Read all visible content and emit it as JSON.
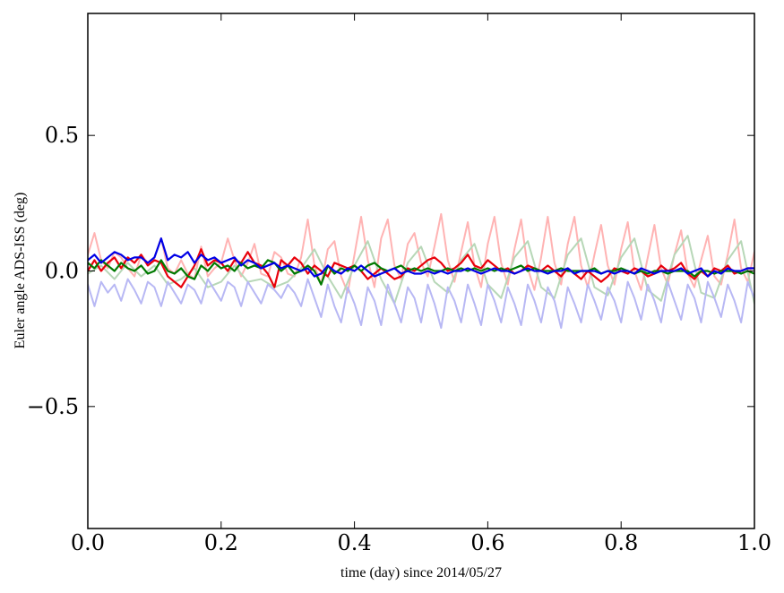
{
  "chart_data": {
    "type": "line",
    "title": "",
    "xlabel": "time (day) since 2014/05/27",
    "ylabel": "Euler angle ADS-ISS (deg)",
    "xlim": [
      0.0,
      1.0
    ],
    "ylim": [
      -0.95,
      0.95
    ],
    "xticks": [
      0.0,
      0.2,
      0.4,
      0.6,
      0.8,
      1.0
    ],
    "xtick_labels": [
      "0.0",
      "0.2",
      "0.4",
      "0.6",
      "0.8",
      "1.0"
    ],
    "yticks": [
      -0.5,
      0.0,
      0.5
    ],
    "ytick_labels": [
      "−0.5",
      "0.0",
      "0.5"
    ],
    "grid": false,
    "legend": "none",
    "series": [
      {
        "color": "#ffb3b3",
        "style": "faded",
        "x": [
          0.0,
          0.01,
          0.02,
          0.03,
          0.04,
          0.05,
          0.06,
          0.07,
          0.08,
          0.09,
          0.1,
          0.11,
          0.12,
          0.13,
          0.14,
          0.15,
          0.16,
          0.17,
          0.18,
          0.19,
          0.2,
          0.21,
          0.22,
          0.23,
          0.24,
          0.25,
          0.26,
          0.27,
          0.28,
          0.29,
          0.3,
          0.31,
          0.32,
          0.33,
          0.34,
          0.35,
          0.36,
          0.37,
          0.38,
          0.39,
          0.4,
          0.41,
          0.42,
          0.43,
          0.44,
          0.45,
          0.46,
          0.47,
          0.48,
          0.49,
          0.5,
          0.51,
          0.52,
          0.53,
          0.54,
          0.55,
          0.56,
          0.57,
          0.58,
          0.59,
          0.6,
          0.61,
          0.62,
          0.63,
          0.64,
          0.65,
          0.66,
          0.67,
          0.68,
          0.69,
          0.7,
          0.71,
          0.72,
          0.73,
          0.74,
          0.75,
          0.76,
          0.77,
          0.78,
          0.79,
          0.8,
          0.81,
          0.82,
          0.83,
          0.84,
          0.85,
          0.86,
          0.87,
          0.88,
          0.89,
          0.9,
          0.91,
          0.92,
          0.93,
          0.94,
          0.95,
          0.96,
          0.97,
          0.98,
          0.99,
          1.0
        ],
        "y": [
          0.06,
          0.14,
          0.04,
          0.01,
          0.07,
          0.05,
          0.01,
          -0.02,
          0.06,
          0.03,
          0.05,
          0.12,
          0.01,
          -0.01,
          0.04,
          -0.01,
          -0.03,
          0.09,
          -0.02,
          0.01,
          0.03,
          0.12,
          0.04,
          -0.02,
          0.03,
          0.1,
          -0.01,
          -0.02,
          0.07,
          0.05,
          -0.01,
          -0.02,
          0.05,
          0.19,
          0.02,
          -0.05,
          0.08,
          0.11,
          -0.02,
          -0.08,
          0.06,
          0.2,
          0.04,
          -0.06,
          0.12,
          0.19,
          0.02,
          -0.03,
          0.1,
          0.14,
          0.03,
          -0.02,
          0.09,
          0.21,
          0.04,
          -0.04,
          0.07,
          0.18,
          0.02,
          -0.06,
          0.1,
          0.2,
          0.03,
          -0.05,
          0.08,
          0.19,
          0.01,
          -0.07,
          0.05,
          0.2,
          0.03,
          -0.05,
          0.1,
          0.2,
          0.02,
          -0.06,
          0.06,
          0.17,
          0.02,
          -0.05,
          0.08,
          0.18,
          0.0,
          -0.07,
          0.05,
          0.17,
          0.01,
          -0.05,
          0.06,
          0.15,
          -0.01,
          -0.06,
          0.04,
          0.13,
          -0.02,
          -0.05,
          0.06,
          0.19,
          0.01,
          -0.04,
          0.07
        ]
      },
      {
        "color": "#b7d7b7",
        "style": "faded",
        "x": [
          0.0,
          0.02,
          0.04,
          0.06,
          0.08,
          0.1,
          0.12,
          0.14,
          0.16,
          0.18,
          0.2,
          0.22,
          0.24,
          0.26,
          0.28,
          0.3,
          0.32,
          0.34,
          0.36,
          0.38,
          0.4,
          0.42,
          0.44,
          0.46,
          0.48,
          0.5,
          0.52,
          0.54,
          0.56,
          0.58,
          0.6,
          0.62,
          0.64,
          0.66,
          0.68,
          0.7,
          0.72,
          0.74,
          0.76,
          0.78,
          0.8,
          0.82,
          0.84,
          0.86,
          0.88,
          0.9,
          0.92,
          0.94,
          0.96,
          0.98,
          1.0
        ],
        "y": [
          -0.01,
          0.02,
          -0.03,
          0.03,
          -0.02,
          0.02,
          -0.05,
          -0.03,
          0.01,
          -0.06,
          -0.04,
          0.02,
          -0.04,
          -0.03,
          -0.06,
          -0.04,
          0.01,
          0.08,
          -0.02,
          -0.1,
          0.02,
          0.11,
          -0.03,
          -0.12,
          0.03,
          0.09,
          -0.04,
          -0.08,
          0.04,
          0.1,
          -0.05,
          -0.1,
          0.05,
          0.11,
          -0.06,
          -0.1,
          0.06,
          0.12,
          -0.06,
          -0.09,
          0.05,
          0.12,
          -0.07,
          -0.11,
          0.06,
          0.13,
          -0.08,
          -0.1,
          0.04,
          0.11,
          -0.12
        ]
      },
      {
        "color": "#b8b8f4",
        "style": "faded",
        "x": [
          0.0,
          0.01,
          0.02,
          0.03,
          0.04,
          0.05,
          0.06,
          0.07,
          0.08,
          0.09,
          0.1,
          0.11,
          0.12,
          0.13,
          0.14,
          0.15,
          0.16,
          0.17,
          0.18,
          0.19,
          0.2,
          0.21,
          0.22,
          0.23,
          0.24,
          0.25,
          0.26,
          0.27,
          0.28,
          0.29,
          0.3,
          0.31,
          0.32,
          0.33,
          0.34,
          0.35,
          0.36,
          0.37,
          0.38,
          0.39,
          0.4,
          0.41,
          0.42,
          0.43,
          0.44,
          0.45,
          0.46,
          0.47,
          0.48,
          0.49,
          0.5,
          0.51,
          0.52,
          0.53,
          0.54,
          0.55,
          0.56,
          0.57,
          0.58,
          0.59,
          0.6,
          0.61,
          0.62,
          0.63,
          0.64,
          0.65,
          0.66,
          0.67,
          0.68,
          0.69,
          0.7,
          0.71,
          0.72,
          0.73,
          0.74,
          0.75,
          0.76,
          0.77,
          0.78,
          0.79,
          0.8,
          0.81,
          0.82,
          0.83,
          0.84,
          0.85,
          0.86,
          0.87,
          0.88,
          0.89,
          0.9,
          0.91,
          0.92,
          0.93,
          0.94,
          0.95,
          0.96,
          0.97,
          0.98,
          0.99,
          1.0
        ],
        "y": [
          -0.05,
          -0.13,
          -0.04,
          -0.08,
          -0.05,
          -0.11,
          -0.03,
          -0.07,
          -0.12,
          -0.04,
          -0.06,
          -0.13,
          -0.04,
          -0.08,
          -0.12,
          -0.05,
          -0.07,
          -0.12,
          -0.03,
          -0.07,
          -0.11,
          -0.04,
          -0.06,
          -0.13,
          -0.04,
          -0.08,
          -0.12,
          -0.05,
          -0.07,
          -0.1,
          -0.05,
          -0.08,
          -0.13,
          -0.03,
          -0.1,
          -0.17,
          -0.05,
          -0.13,
          -0.19,
          -0.06,
          -0.12,
          -0.2,
          -0.06,
          -0.11,
          -0.2,
          -0.05,
          -0.12,
          -0.19,
          -0.06,
          -0.1,
          -0.19,
          -0.05,
          -0.12,
          -0.21,
          -0.06,
          -0.11,
          -0.19,
          -0.05,
          -0.12,
          -0.2,
          -0.05,
          -0.11,
          -0.19,
          -0.06,
          -0.12,
          -0.2,
          -0.05,
          -0.11,
          -0.19,
          -0.06,
          -0.11,
          -0.21,
          -0.06,
          -0.12,
          -0.19,
          -0.05,
          -0.11,
          -0.18,
          -0.06,
          -0.11,
          -0.19,
          -0.04,
          -0.1,
          -0.18,
          -0.05,
          -0.11,
          -0.19,
          -0.04,
          -0.11,
          -0.18,
          -0.05,
          -0.1,
          -0.19,
          -0.04,
          -0.1,
          -0.17,
          -0.05,
          -0.11,
          -0.19,
          -0.04,
          -0.1
        ]
      },
      {
        "color": "#e8000b",
        "style": "solid",
        "x": [
          0.0,
          0.01,
          0.02,
          0.03,
          0.04,
          0.05,
          0.06,
          0.07,
          0.08,
          0.09,
          0.1,
          0.11,
          0.12,
          0.13,
          0.14,
          0.15,
          0.16,
          0.17,
          0.18,
          0.19,
          0.2,
          0.21,
          0.22,
          0.23,
          0.24,
          0.25,
          0.26,
          0.27,
          0.28,
          0.29,
          0.3,
          0.31,
          0.32,
          0.33,
          0.34,
          0.35,
          0.36,
          0.37,
          0.38,
          0.39,
          0.4,
          0.41,
          0.42,
          0.43,
          0.44,
          0.45,
          0.46,
          0.47,
          0.48,
          0.49,
          0.5,
          0.51,
          0.52,
          0.53,
          0.54,
          0.55,
          0.56,
          0.57,
          0.58,
          0.59,
          0.6,
          0.61,
          0.62,
          0.63,
          0.64,
          0.65,
          0.66,
          0.67,
          0.68,
          0.69,
          0.7,
          0.71,
          0.72,
          0.73,
          0.74,
          0.75,
          0.76,
          0.77,
          0.78,
          0.79,
          0.8,
          0.81,
          0.82,
          0.83,
          0.84,
          0.85,
          0.86,
          0.87,
          0.88,
          0.89,
          0.9,
          0.91,
          0.92,
          0.93,
          0.94,
          0.95,
          0.96,
          0.97,
          0.98,
          0.99,
          1.0
        ],
        "y": [
          0.0,
          0.04,
          0.0,
          0.03,
          0.05,
          0.01,
          0.05,
          0.03,
          0.06,
          0.02,
          0.04,
          0.03,
          -0.02,
          -0.04,
          -0.06,
          -0.02,
          0.02,
          0.08,
          0.02,
          0.04,
          0.03,
          0.0,
          0.04,
          0.03,
          0.07,
          0.03,
          0.02,
          -0.01,
          -0.06,
          0.04,
          0.02,
          0.05,
          0.03,
          -0.01,
          0.02,
          0.0,
          -0.02,
          0.03,
          0.02,
          0.01,
          0.02,
          0.0,
          -0.03,
          -0.01,
          0.01,
          -0.01,
          -0.03,
          -0.02,
          0.01,
          0.0,
          0.02,
          0.04,
          0.05,
          0.03,
          0.0,
          0.01,
          0.03,
          0.06,
          0.02,
          0.01,
          0.04,
          0.02,
          0.0,
          0.01,
          -0.01,
          0.0,
          0.02,
          0.01,
          0.0,
          0.02,
          0.0,
          -0.02,
          0.01,
          -0.01,
          -0.03,
          0.0,
          -0.02,
          -0.04,
          -0.02,
          0.01,
          0.0,
          -0.01,
          0.01,
          0.0,
          -0.02,
          -0.01,
          0.02,
          0.0,
          0.01,
          0.03,
          -0.01,
          -0.03,
          0.0,
          -0.02,
          0.01,
          0.0,
          0.02,
          -0.01,
          0.0,
          0.01,
          0.01
        ]
      },
      {
        "color": "#007a00",
        "style": "solid",
        "x": [
          0.0,
          0.01,
          0.02,
          0.03,
          0.04,
          0.05,
          0.06,
          0.07,
          0.08,
          0.09,
          0.1,
          0.11,
          0.12,
          0.13,
          0.14,
          0.15,
          0.16,
          0.17,
          0.18,
          0.19,
          0.2,
          0.21,
          0.22,
          0.23,
          0.24,
          0.25,
          0.26,
          0.27,
          0.28,
          0.29,
          0.3,
          0.31,
          0.32,
          0.33,
          0.34,
          0.35,
          0.36,
          0.37,
          0.38,
          0.39,
          0.4,
          0.41,
          0.42,
          0.43,
          0.44,
          0.45,
          0.46,
          0.47,
          0.48,
          0.49,
          0.5,
          0.51,
          0.52,
          0.53,
          0.54,
          0.55,
          0.56,
          0.57,
          0.58,
          0.59,
          0.6,
          0.61,
          0.62,
          0.63,
          0.64,
          0.65,
          0.66,
          0.67,
          0.68,
          0.69,
          0.7,
          0.71,
          0.72,
          0.73,
          0.74,
          0.75,
          0.76,
          0.77,
          0.78,
          0.79,
          0.8,
          0.81,
          0.82,
          0.83,
          0.84,
          0.85,
          0.86,
          0.87,
          0.88,
          0.89,
          0.9,
          0.91,
          0.92,
          0.93,
          0.94,
          0.95,
          0.96,
          0.97,
          0.98,
          0.99,
          1.0
        ],
        "y": [
          0.03,
          0.01,
          0.04,
          0.02,
          0.0,
          0.03,
          0.01,
          0.0,
          0.02,
          -0.01,
          0.0,
          0.04,
          0.0,
          -0.01,
          0.01,
          -0.02,
          -0.03,
          0.02,
          0.0,
          0.03,
          0.01,
          0.02,
          0.0,
          0.03,
          0.01,
          0.02,
          0.01,
          0.04,
          0.03,
          0.0,
          0.02,
          -0.01,
          0.0,
          0.02,
          0.0,
          -0.05,
          0.02,
          -0.01,
          0.01,
          0.0,
          0.02,
          0.0,
          0.02,
          0.03,
          0.01,
          0.0,
          0.01,
          0.02,
          0.0,
          0.01,
          0.0,
          0.01,
          0.0,
          0.0,
          0.01,
          0.0,
          0.01,
          0.0,
          0.01,
          0.0,
          0.01,
          0.0,
          0.01,
          0.0,
          0.01,
          0.02,
          0.0,
          0.01,
          0.0,
          0.0,
          0.0,
          0.01,
          0.0,
          0.0,
          0.0,
          0.0,
          0.01,
          -0.01,
          0.0,
          0.0,
          0.01,
          0.0,
          -0.01,
          0.0,
          -0.01,
          0.0,
          0.0,
          -0.01,
          0.0,
          0.0,
          0.0,
          -0.02,
          0.0,
          0.0,
          -0.01,
          0.0,
          0.0,
          0.0,
          -0.01,
          0.0,
          -0.01
        ]
      },
      {
        "color": "#0000e6",
        "style": "solid",
        "x": [
          0.0,
          0.01,
          0.02,
          0.03,
          0.04,
          0.05,
          0.06,
          0.07,
          0.08,
          0.09,
          0.1,
          0.11,
          0.12,
          0.13,
          0.14,
          0.15,
          0.16,
          0.17,
          0.18,
          0.19,
          0.2,
          0.21,
          0.22,
          0.23,
          0.24,
          0.25,
          0.26,
          0.27,
          0.28,
          0.29,
          0.3,
          0.31,
          0.32,
          0.33,
          0.34,
          0.35,
          0.36,
          0.37,
          0.38,
          0.39,
          0.4,
          0.41,
          0.42,
          0.43,
          0.44,
          0.45,
          0.46,
          0.47,
          0.48,
          0.49,
          0.5,
          0.51,
          0.52,
          0.53,
          0.54,
          0.55,
          0.56,
          0.57,
          0.58,
          0.59,
          0.6,
          0.61,
          0.62,
          0.63,
          0.64,
          0.65,
          0.66,
          0.67,
          0.68,
          0.69,
          0.7,
          0.71,
          0.72,
          0.73,
          0.74,
          0.75,
          0.76,
          0.77,
          0.78,
          0.79,
          0.8,
          0.81,
          0.82,
          0.83,
          0.84,
          0.85,
          0.86,
          0.87,
          0.88,
          0.89,
          0.9,
          0.91,
          0.92,
          0.93,
          0.94,
          0.95,
          0.96,
          0.97,
          0.98,
          0.99,
          1.0
        ],
        "y": [
          0.04,
          0.06,
          0.03,
          0.05,
          0.07,
          0.06,
          0.04,
          0.05,
          0.05,
          0.03,
          0.05,
          0.12,
          0.04,
          0.06,
          0.05,
          0.07,
          0.03,
          0.06,
          0.04,
          0.05,
          0.03,
          0.04,
          0.05,
          0.02,
          0.04,
          0.03,
          0.01,
          0.02,
          0.03,
          0.01,
          0.02,
          0.01,
          0.0,
          0.01,
          -0.02,
          -0.01,
          0.02,
          0.0,
          -0.01,
          0.01,
          0.0,
          0.02,
          0.0,
          -0.02,
          -0.01,
          0.0,
          0.01,
          -0.01,
          0.0,
          -0.01,
          -0.01,
          0.0,
          -0.01,
          0.0,
          -0.01,
          0.0,
          0.0,
          0.01,
          0.0,
          -0.01,
          0.0,
          0.01,
          0.0,
          0.0,
          -0.01,
          0.0,
          0.01,
          0.0,
          0.0,
          -0.01,
          0.0,
          0.0,
          0.01,
          -0.01,
          0.0,
          0.0,
          0.0,
          -0.01,
          0.0,
          -0.01,
          0.0,
          0.0,
          -0.01,
          0.01,
          0.0,
          -0.01,
          0.0,
          0.0,
          0.0,
          0.01,
          -0.01,
          0.0,
          0.01,
          -0.02,
          0.0,
          -0.01,
          0.01,
          0.0,
          0.0,
          0.01,
          0.01
        ]
      }
    ]
  }
}
